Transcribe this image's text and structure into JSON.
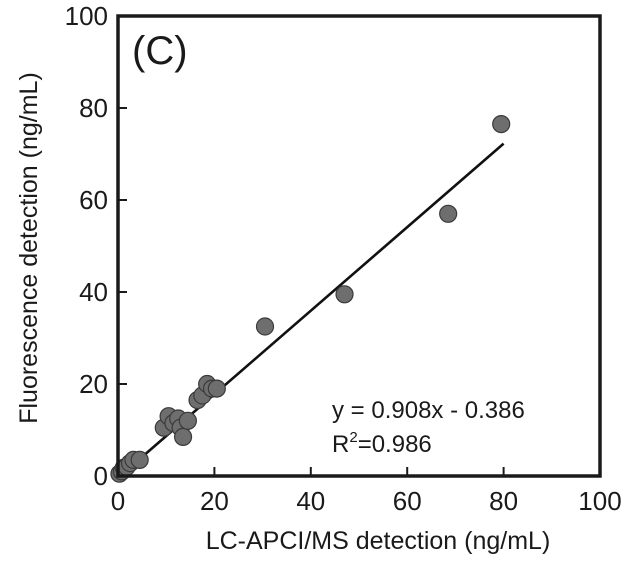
{
  "chart_data": {
    "type": "scatter",
    "panel_label": "(C)",
    "xlabel": "LC-APCI/MS detection (ng/mL)",
    "ylabel": "Fluorescence detection (ng/mL)",
    "xlim": [
      0,
      100
    ],
    "ylim": [
      0,
      100
    ],
    "xticks": [
      "0",
      "20",
      "40",
      "60",
      "80",
      "100"
    ],
    "yticks": [
      "0",
      "20",
      "40",
      "60",
      "80",
      "100"
    ],
    "grid": false,
    "marker_color": "#6e6e6e",
    "points": [
      {
        "x": 0.3,
        "y": 0.5
      },
      {
        "x": 0.8,
        "y": 1.0
      },
      {
        "x": 1.2,
        "y": 1.8
      },
      {
        "x": 1.8,
        "y": 2.0
      },
      {
        "x": 2.5,
        "y": 2.8
      },
      {
        "x": 3.2,
        "y": 3.5
      },
      {
        "x": 4.5,
        "y": 3.5
      },
      {
        "x": 9.5,
        "y": 10.5
      },
      {
        "x": 10.5,
        "y": 13.0
      },
      {
        "x": 11.5,
        "y": 11.5
      },
      {
        "x": 12.5,
        "y": 12.5
      },
      {
        "x": 13.0,
        "y": 10.5
      },
      {
        "x": 13.5,
        "y": 8.5
      },
      {
        "x": 14.5,
        "y": 12.0
      },
      {
        "x": 16.5,
        "y": 16.5
      },
      {
        "x": 17.5,
        "y": 17.5
      },
      {
        "x": 18.5,
        "y": 20.0
      },
      {
        "x": 19.5,
        "y": 19.0
      },
      {
        "x": 20.5,
        "y": 19.0
      },
      {
        "x": 30.5,
        "y": 32.5
      },
      {
        "x": 47.0,
        "y": 39.5
      },
      {
        "x": 68.5,
        "y": 57.0
      },
      {
        "x": 79.5,
        "y": 76.5
      }
    ],
    "fit_line": {
      "slope": 0.908,
      "intercept": -0.386,
      "x_range": [
        0,
        80
      ]
    },
    "annotations": {
      "equation": "y = 0.908x - 0.386",
      "r2_prefix": "R",
      "r2_sup": "2",
      "r2_value": "=0.986"
    }
  }
}
